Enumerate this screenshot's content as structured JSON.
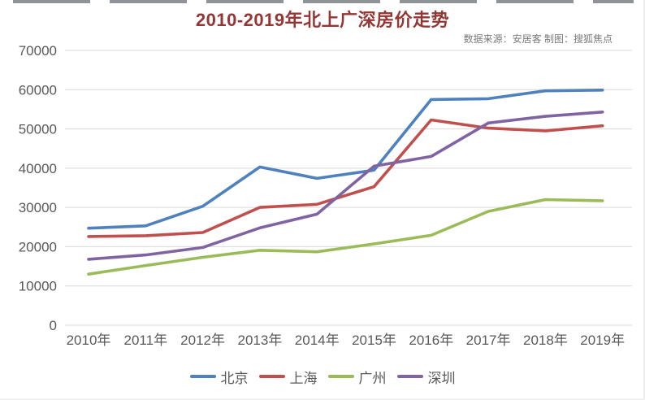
{
  "title": "2010-2019年北上广深房价走势",
  "source_note": "数据来源：安居客  制图：搜狐焦点",
  "colors": {
    "title": "#943634",
    "axis_text": "#595959",
    "gridline": "#d9d9d9",
    "source_text": "#7a7a7a"
  },
  "chart_data": {
    "type": "line",
    "title": "2010-2019年北上广深房价走势",
    "categories": [
      "2010年",
      "2011年",
      "2012年",
      "2013年",
      "2014年",
      "2015年",
      "2016年",
      "2017年",
      "2018年",
      "2019年"
    ],
    "series": [
      {
        "name": "北京",
        "color": "#4F81BD",
        "values": [
          24700,
          25300,
          30300,
          40300,
          37400,
          39500,
          57500,
          57700,
          59700,
          59900
        ]
      },
      {
        "name": "上海",
        "color": "#C0504D",
        "values": [
          22600,
          22800,
          23600,
          30000,
          30800,
          35300,
          52300,
          50200,
          49500,
          50800
        ]
      },
      {
        "name": "广州",
        "color": "#9BBB59",
        "values": [
          13000,
          15200,
          17300,
          19100,
          18700,
          20700,
          22900,
          29000,
          32000,
          31700
        ]
      },
      {
        "name": "深圳",
        "color": "#8064A2",
        "values": [
          16800,
          17900,
          19800,
          24800,
          28300,
          40500,
          43000,
          51500,
          53200,
          54300
        ]
      }
    ],
    "ylabel": "",
    "xlabel": "",
    "ylim": [
      0,
      70000
    ],
    "ytick_step": 10000,
    "grid": true,
    "legend_position": "bottom"
  }
}
